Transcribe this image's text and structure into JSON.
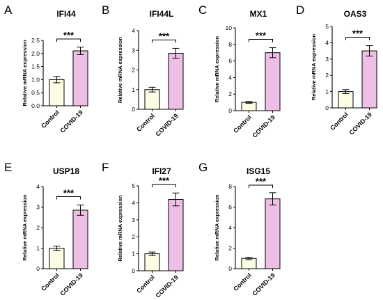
{
  "figure": {
    "axis_label": "Relative mRNA expression",
    "colors": {
      "control": "#fdfde6",
      "covid": "#eebfe6",
      "stroke": "#000000"
    }
  },
  "chart_data": [
    {
      "panel_letter": "A",
      "type": "bar",
      "title": "IFI44",
      "categories": [
        "Control",
        "COVID-19"
      ],
      "values": [
        1.0,
        2.1
      ],
      "errors": [
        0.12,
        0.14
      ],
      "ylim": [
        0,
        2.5
      ],
      "yticks": [
        "0.0",
        "0.5",
        "1.0",
        "1.5",
        "2.0",
        "2.5"
      ],
      "significance": "***",
      "ylabel": "Relative mRNA expression"
    },
    {
      "panel_letter": "B",
      "type": "bar",
      "title": "IFI44L",
      "categories": [
        "Control",
        "COVID-19"
      ],
      "values": [
        1.0,
        2.85
      ],
      "errors": [
        0.12,
        0.25
      ],
      "ylim": [
        0,
        4
      ],
      "yticks": [
        "0",
        "1",
        "2",
        "3",
        "4"
      ],
      "significance": "***",
      "ylabel": "Relative mRNA expression"
    },
    {
      "panel_letter": "C",
      "type": "bar",
      "title": "MX1",
      "categories": [
        "Control",
        "COVID-19"
      ],
      "values": [
        1.0,
        7.0
      ],
      "errors": [
        0.1,
        0.6
      ],
      "ylim": [
        0,
        10
      ],
      "yticks": [
        "0",
        "2",
        "4",
        "6",
        "8",
        "10"
      ],
      "significance": "***",
      "ylabel": "Relative mRNA expression"
    },
    {
      "panel_letter": "D",
      "type": "bar",
      "title": "OAS3",
      "categories": [
        "Control",
        "COVID-19"
      ],
      "values": [
        1.0,
        3.5
      ],
      "errors": [
        0.12,
        0.32
      ],
      "ylim": [
        0,
        5
      ],
      "yticks": [
        "0",
        "1",
        "2",
        "3",
        "4",
        "5"
      ],
      "significance": "***",
      "ylabel": "Relative mRNA expression"
    },
    {
      "panel_letter": "E",
      "type": "bar",
      "title": "USP18",
      "categories": [
        "Control",
        "COVID-19"
      ],
      "values": [
        1.0,
        2.85
      ],
      "errors": [
        0.1,
        0.25
      ],
      "ylim": [
        0,
        4
      ],
      "yticks": [
        "0",
        "1",
        "2",
        "3",
        "4"
      ],
      "significance": "***",
      "ylabel": "Relative mRNA expression"
    },
    {
      "panel_letter": "F",
      "type": "bar",
      "title": "IFI27",
      "categories": [
        "Control",
        "COVID-19"
      ],
      "values": [
        1.0,
        4.2
      ],
      "errors": [
        0.1,
        0.38
      ],
      "ylim": [
        0,
        5
      ],
      "yticks": [
        "0",
        "1",
        "2",
        "3",
        "4",
        "5"
      ],
      "significance": "***",
      "ylabel": "Relative mRNA expression"
    },
    {
      "panel_letter": "G",
      "type": "bar",
      "title": "ISG15",
      "categories": [
        "Control",
        "COVID-19"
      ],
      "values": [
        1.0,
        6.8
      ],
      "errors": [
        0.12,
        0.6
      ],
      "ylim": [
        0,
        8
      ],
      "yticks": [
        "0",
        "2",
        "4",
        "6",
        "8"
      ],
      "significance": "***",
      "ylabel": "Relative mRNA expression"
    }
  ]
}
